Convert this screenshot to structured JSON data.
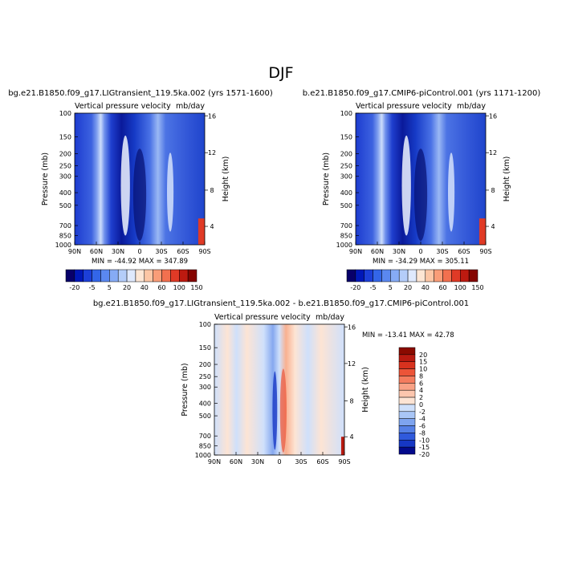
{
  "page_title": "DJF",
  "chart_data": [
    {
      "type": "heatmap",
      "title": "bg.e21.B1850.f09_g17.LIGtransient_119.5ka.002 (yrs 1571-1600)",
      "subtitle_left": "Vertical pressure velocity",
      "subtitle_right": "mb/day",
      "ylabel": "Pressure (mb)",
      "ylabel_right": "Height (km)",
      "x_ticks": [
        "90N",
        "60N",
        "30N",
        "0",
        "30S",
        "60S",
        "90S"
      ],
      "y_ticks": [
        "100",
        "150",
        "200",
        "250",
        "300",
        "400",
        "500",
        "700",
        "850",
        "1000"
      ],
      "y_ticks_right": [
        "16",
        "12",
        "8",
        "4"
      ],
      "stats": "MIN = -44.92   MAX = 347.89",
      "legend_position": "bottom",
      "legend_labels": [
        "-20",
        "-5",
        "5",
        "20",
        "40",
        "60",
        "100",
        "150"
      ]
    },
    {
      "type": "heatmap",
      "title": "b.e21.B1850.f09_g17.CMIP6-piControl.001 (yrs 1171-1200)",
      "subtitle_left": "Vertical pressure velocity",
      "subtitle_right": "mb/day",
      "ylabel": "Pressure (mb)",
      "ylabel_right": "Height (km)",
      "x_ticks": [
        "90N",
        "60N",
        "30N",
        "0",
        "30S",
        "60S",
        "90S"
      ],
      "y_ticks": [
        "100",
        "150",
        "200",
        "250",
        "300",
        "400",
        "500",
        "700",
        "850",
        "1000"
      ],
      "y_ticks_right": [
        "16",
        "12",
        "8",
        "4"
      ],
      "stats": "MIN = -34.29   MAX = 305.11",
      "legend_position": "bottom",
      "legend_labels": [
        "-20",
        "-5",
        "5",
        "20",
        "40",
        "60",
        "100",
        "150"
      ]
    },
    {
      "type": "heatmap",
      "title": "bg.e21.B1850.f09_g17.LIGtransient_119.5ka.002 - b.e21.B1850.f09_g17.CMIP6-piControl.001",
      "subtitle_left": "Vertical pressure velocity",
      "subtitle_right": "mb/day",
      "ylabel": "Pressure (mb)",
      "ylabel_right": "Height (km)",
      "x_ticks": [
        "90N",
        "60N",
        "30N",
        "0",
        "30S",
        "60S",
        "90S"
      ],
      "y_ticks": [
        "100",
        "150",
        "200",
        "250",
        "300",
        "400",
        "500",
        "700",
        "850",
        "1000"
      ],
      "y_ticks_right": [
        "16",
        "12",
        "8",
        "4"
      ],
      "stats": "MIN = -13.41   MAX =  42.78",
      "legend_position": "right",
      "legend_labels": [
        "20",
        "15",
        "10",
        "8",
        "6",
        "4",
        "2",
        "0",
        "-2",
        "-4",
        "-6",
        "-8",
        "-10",
        "-15",
        "-20"
      ]
    }
  ],
  "colors": {
    "main_scale": [
      "#08006a",
      "#0018b8",
      "#1c3fd8",
      "#3366e8",
      "#5a88f0",
      "#86abf5",
      "#b4cdf9",
      "#dfe9fd",
      "#fde6d4",
      "#fcc6a5",
      "#f99d78",
      "#f2704f",
      "#e03a26",
      "#bd1a10",
      "#850400"
    ],
    "diff_scale": [
      "#8a0a00",
      "#b81a10",
      "#d8321e",
      "#ec5438",
      "#f47c5e",
      "#f9a286",
      "#fcc6ae",
      "#fde4d4",
      "#cfe0fb",
      "#a9c6f6",
      "#7ea4ef",
      "#5580e6",
      "#305adc",
      "#1637c4",
      "#030a8c"
    ]
  }
}
